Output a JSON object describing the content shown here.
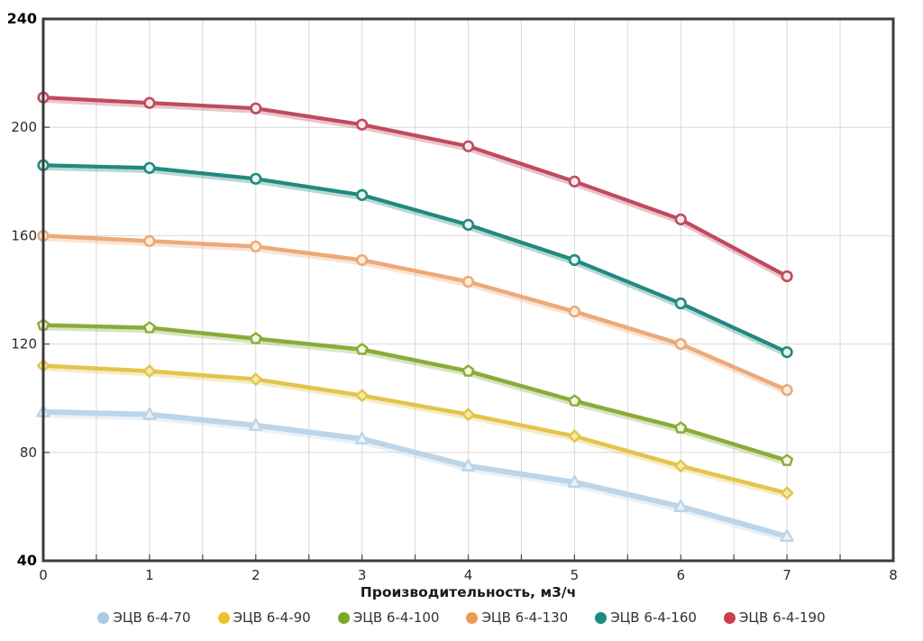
{
  "chart_data": {
    "type": "line",
    "x": [
      0,
      1,
      2,
      3,
      4,
      5,
      6,
      7
    ],
    "xlabel": "Производительность, м3/ч",
    "ylabel": "",
    "xlim": [
      0,
      8
    ],
    "ylim": [
      40,
      240
    ],
    "x_ticks": [
      0,
      1,
      2,
      3,
      4,
      5,
      6,
      7,
      8
    ],
    "y_ticks": [
      40,
      80,
      120,
      160,
      200,
      240
    ],
    "bold_y_ticks": [
      40,
      240
    ],
    "grid": {
      "x_step": 0.5,
      "y_step": 40,
      "color": "#d9d9d9"
    },
    "axis_border_color": "#3c3c3c",
    "legend_position": "bottom",
    "series": [
      {
        "name": "ЭЦВ 6-4-70",
        "color": "#bcd5e8",
        "legend_color": "#a6cbe6",
        "marker": "triangle",
        "marker_fill": "#eaf2fa",
        "line_width": 6,
        "values": [
          95,
          94,
          90,
          85,
          75,
          69,
          60,
          49
        ]
      },
      {
        "name": "ЭЦВ 6-4-90",
        "color": "#e2c44d",
        "legend_color": "#eec12f",
        "marker": "diamond",
        "marker_fill": "#f6e9a8",
        "line_width": 4.5,
        "values": [
          112,
          110,
          107,
          101,
          94,
          86,
          75,
          65
        ]
      },
      {
        "name": "ЭЦВ 6-4-100",
        "color": "#8bab39",
        "legend_color": "#7fa62c",
        "marker": "pentagon",
        "marker_fill": "#f3f7e0",
        "line_width": 4.5,
        "values": [
          127,
          126,
          122,
          118,
          110,
          99,
          89,
          77
        ]
      },
      {
        "name": "ЭЦВ 6-4-130",
        "color": "#ecaa78",
        "legend_color": "#ee9a55",
        "marker": "circle",
        "marker_fill": "#fdeede",
        "line_width": 4.5,
        "values": [
          160,
          158,
          156,
          151,
          143,
          132,
          120,
          103
        ]
      },
      {
        "name": "ЭЦВ 6-4-160",
        "color": "#22897f",
        "legend_color": "#1b8b81",
        "marker": "circle",
        "marker_fill": "#e6f6f2",
        "line_width": 4.2,
        "values": [
          186,
          185,
          181,
          175,
          164,
          151,
          135,
          117
        ]
      },
      {
        "name": "ЭЦВ 6-4-190",
        "color": "#bf4b5e",
        "legend_color": "#c8404d",
        "marker": "circle",
        "marker_fill": "#fbeaec",
        "line_width": 4.2,
        "values": [
          211,
          209,
          207,
          201,
          193,
          180,
          166,
          145
        ]
      }
    ]
  }
}
